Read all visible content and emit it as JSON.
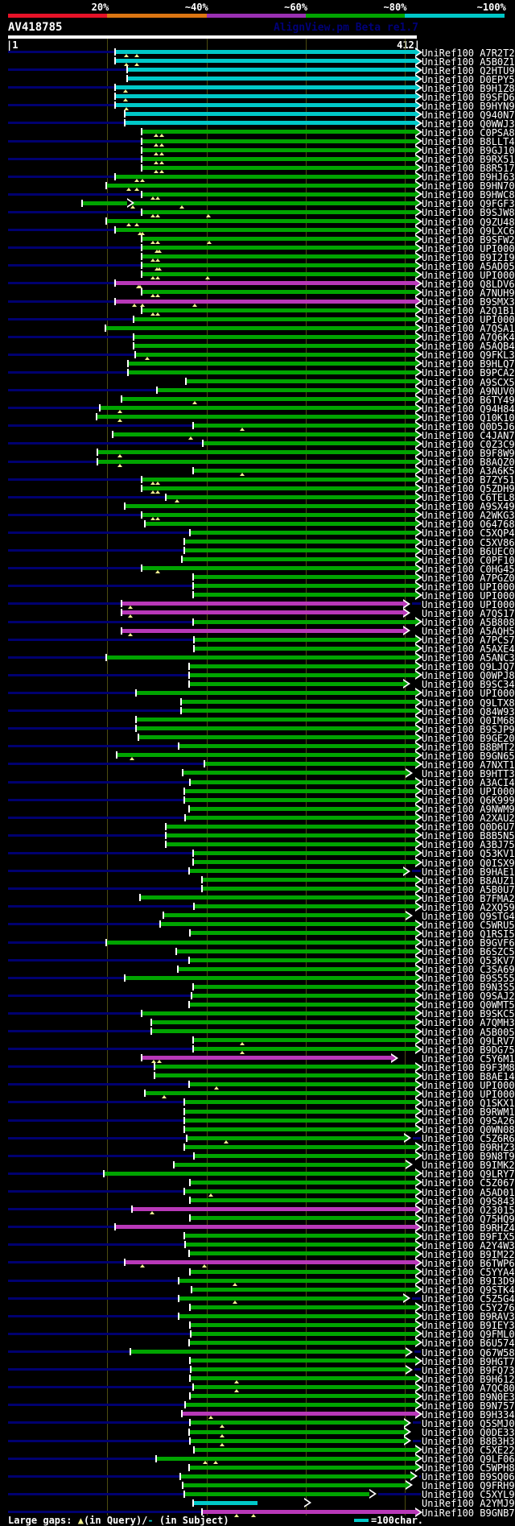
{
  "header": {
    "query_name": "AV418785",
    "app_label": "AlignView.pm Beta re1.7",
    "ruler": {
      "left": "|1",
      "right": "412|",
      "length": 412
    },
    "scale": {
      "labels": [
        {
          "text": "20%",
          "boundary": 100
        },
        {
          "text": "~40%",
          "boundary": 200
        },
        {
          "text": "~60%",
          "boundary": 300
        },
        {
          "text": "~80%",
          "boundary": 400
        },
        {
          "text": "~100%",
          "boundary": 500
        }
      ],
      "segments": [
        {
          "name": "red",
          "color": "#e61228",
          "from": 0,
          "to": 100
        },
        {
          "name": "orange",
          "color": "#dc7612",
          "from": 100,
          "to": 200
        },
        {
          "name": "purple",
          "color": "#9a30b2",
          "from": 200,
          "to": 300
        },
        {
          "name": "green",
          "color": "#00a400",
          "from": 300,
          "to": 400
        },
        {
          "name": "cyan",
          "color": "#00c8c8",
          "from": 400,
          "to": 500
        }
      ]
    }
  },
  "legend": {
    "prefix": "Large gaps: ",
    "query_marker": "▲",
    "query_text": "(in Query)/",
    "subject_marker": "-",
    "subject_text": " (in Subject)",
    "scalebar_label": "=100char.",
    "scalebar_chars": 100
  },
  "colors": {
    "cyan": "#00c8c8",
    "green": "#00a400",
    "magenta": "#b838b8",
    "navy": "#000070",
    "grid": "#4c4c10",
    "triangle": "#f0f090",
    "white": "#ffffff"
  },
  "chart_data": {
    "type": "alignment-overview",
    "query": "AV418785",
    "query_length": 412,
    "note": "Rows: l=subject label, c=bar color class (green default), s/e=aligned start/end in query coords, t=large-gap-in-query triangle positions, oa=open arrowhead position, na=no solid end arrow",
    "rows": [
      {
        "l": "UniRef100_A7R2T2",
        "c": "cyan",
        "s": 110,
        "e": 412,
        "t": [
          120,
          131
        ]
      },
      {
        "l": "UniRef100_A5B0Z1",
        "c": "cyan",
        "s": 110,
        "e": 412,
        "t": [
          120,
          131
        ]
      },
      {
        "l": "UniRef100_Q2HTU9",
        "c": "cyan",
        "s": 122,
        "e": 412
      },
      {
        "l": "UniRef100_D0EPY5",
        "c": "cyan",
        "s": 122,
        "e": 412
      },
      {
        "l": "UniRef100_B9H1Z8",
        "c": "cyan",
        "s": 110,
        "e": 412,
        "t": [
          119
        ]
      },
      {
        "l": "UniRef100_B9SFD6",
        "c": "cyan",
        "s": 110,
        "e": 412,
        "t": [
          119
        ]
      },
      {
        "l": "UniRef100_B9HYN9",
        "c": "cyan",
        "s": 110,
        "e": 412,
        "t": [
          120
        ]
      },
      {
        "l": "UniRef100_Q940N7",
        "c": "cyan",
        "s": 119,
        "e": 412
      },
      {
        "l": "UniRef100_Q0WWJ3",
        "c": "cyan",
        "s": 119,
        "e": 412
      },
      {
        "l": "UniRef100_C0PSA8",
        "s": 136,
        "e": 412,
        "t": [
          150,
          156
        ]
      },
      {
        "l": "UniRef100_B8LLT4",
        "s": 136,
        "e": 412,
        "t": [
          150,
          156
        ]
      },
      {
        "l": "UniRef100_B9GJ10",
        "s": 136,
        "e": 412,
        "t": [
          150,
          156
        ]
      },
      {
        "l": "UniRef100_B9RX51",
        "s": 136,
        "e": 412,
        "t": [
          150,
          156
        ]
      },
      {
        "l": "UniRef100_B8R517",
        "s": 136,
        "e": 412,
        "t": [
          150,
          156
        ]
      },
      {
        "l": "UniRef100_B9HJ63",
        "s": 110,
        "e": 412,
        "t": [
          131,
          136
        ]
      },
      {
        "l": "UniRef100_B9HN70",
        "s": 101,
        "e": 412,
        "t": [
          123,
          131
        ]
      },
      {
        "l": "UniRef100_B9HWC8",
        "s": 136,
        "e": 412,
        "t": [
          147,
          152
        ]
      },
      {
        "l": "UniRef100_Q9FGF3",
        "s": 76,
        "e": 412,
        "t": [
          127,
          176
        ],
        "oa": 122
      },
      {
        "l": "UniRef100_B9SJW8",
        "s": 136,
        "e": 412,
        "t": [
          147,
          152,
          203
        ]
      },
      {
        "l": "UniRef100_Q9ZU48",
        "s": 101,
        "e": 412,
        "t": [
          123,
          131
        ]
      },
      {
        "l": "UniRef100_Q9LXC6",
        "s": 110,
        "e": 412,
        "t": [
          134,
          136
        ]
      },
      {
        "l": "UniRef100_B9SFW2",
        "s": 136,
        "e": 412,
        "t": [
          147,
          152,
          204
        ]
      },
      {
        "l": "UniRef100_UPI000..",
        "s": 136,
        "e": 412,
        "t": [
          151,
          153
        ]
      },
      {
        "l": "UniRef100_B9I2I9",
        "s": 136,
        "e": 412,
        "t": [
          147,
          152
        ]
      },
      {
        "l": "UniRef100_A5AD05",
        "s": 136,
        "e": 412,
        "t": [
          151,
          153
        ]
      },
      {
        "l": "UniRef100_UPI000..",
        "s": 136,
        "e": 412,
        "t": [
          147,
          152,
          202
        ]
      },
      {
        "l": "UniRef100_Q8LDV6",
        "c": "magenta",
        "s": 110,
        "e": 412,
        "t": [
          132,
          134
        ]
      },
      {
        "l": "UniRef100_A7NUH9",
        "s": 136,
        "e": 412,
        "t": [
          147,
          152
        ]
      },
      {
        "l": "UniRef100_B9SMX3",
        "c": "magenta",
        "s": 110,
        "e": 412,
        "t": [
          128,
          136,
          189
        ]
      },
      {
        "l": "UniRef100_A2Q1B1",
        "s": 136,
        "e": 412,
        "t": [
          147,
          152
        ]
      },
      {
        "l": "UniRef100_UPI000..",
        "s": 128,
        "e": 412
      },
      {
        "l": "UniRef100_A7QSA1",
        "s": 100,
        "e": 412
      },
      {
        "l": "UniRef100_A7Q6K4",
        "s": 128,
        "e": 412
      },
      {
        "l": "UniRef100_A5AQB4",
        "s": 128,
        "e": 412
      },
      {
        "l": "UniRef100_Q9FKL3",
        "s": 130,
        "e": 412,
        "t": [
          141
        ]
      },
      {
        "l": "UniRef100_B9HLQ7",
        "s": 123,
        "e": 412
      },
      {
        "l": "UniRef100_B9PCA2",
        "s": 123,
        "e": 412
      },
      {
        "l": "UniRef100_A9SCX5",
        "s": 181,
        "e": 412
      },
      {
        "l": "UniRef100_A9NUV0",
        "s": 152,
        "e": 412
      },
      {
        "l": "UniRef100_B6TY49",
        "s": 116,
        "e": 412,
        "t": [
          189
        ]
      },
      {
        "l": "UniRef100_Q94H84",
        "s": 94,
        "e": 412,
        "t": [
          114
        ]
      },
      {
        "l": "UniRef100_Q10K10",
        "s": 91,
        "e": 412,
        "t": [
          114
        ]
      },
      {
        "l": "UniRef100_Q0D5J6",
        "s": 188,
        "e": 412,
        "t": [
          237
        ]
      },
      {
        "l": "UniRef100_C4JAN7",
        "s": 107,
        "e": 412,
        "t": [
          185
        ]
      },
      {
        "l": "UniRef100_C0Z3C9",
        "s": 198,
        "e": 412
      },
      {
        "l": "UniRef100_B9F8W9",
        "s": 92,
        "e": 412,
        "t": [
          114
        ]
      },
      {
        "l": "UniRef100_B8AQZ0",
        "s": 92,
        "e": 412,
        "t": [
          114
        ]
      },
      {
        "l": "UniRef100_A3A6K5",
        "s": 188,
        "e": 412,
        "t": [
          237
        ]
      },
      {
        "l": "UniRef100_B7ZY51",
        "s": 136,
        "e": 412,
        "t": [
          147,
          152
        ]
      },
      {
        "l": "UniRef100_Q5ZDH9",
        "s": 136,
        "e": 412,
        "t": [
          147,
          152
        ]
      },
      {
        "l": "UniRef100_C6TEL8",
        "s": 161,
        "e": 412,
        "t": [
          171
        ]
      },
      {
        "l": "UniRef100_A9SX49",
        "s": 119,
        "e": 412
      },
      {
        "l": "UniRef100_A2WKG3",
        "s": 136,
        "e": 412,
        "t": [
          147,
          152
        ]
      },
      {
        "l": "UniRef100_O64768",
        "s": 140,
        "e": 412
      },
      {
        "l": "UniRef100_C5XQP4",
        "s": 185,
        "e": 412
      },
      {
        "l": "UniRef100_C5XV86",
        "s": 179,
        "e": 412
      },
      {
        "l": "UniRef100_B6UEC0",
        "s": 179,
        "e": 412
      },
      {
        "l": "UniRef100_C0PF10",
        "s": 177,
        "e": 412
      },
      {
        "l": "UniRef100_C0HG45",
        "s": 136,
        "e": 412,
        "t": [
          152
        ]
      },
      {
        "l": "UniRef100_A7PGZ0",
        "s": 188,
        "e": 412
      },
      {
        "l": "UniRef100_UPI000..",
        "s": 188,
        "e": 412
      },
      {
        "l": "UniRef100_UPI000..",
        "s": 188,
        "e": 412
      },
      {
        "l": "UniRef100_UPI000..",
        "c": "magenta",
        "s": 116,
        "e": 400,
        "t": [
          124
        ]
      },
      {
        "l": "UniRef100_A7QS17",
        "c": "magenta",
        "s": 116,
        "e": 400,
        "t": [
          124
        ]
      },
      {
        "l": "UniRef100_A5B808",
        "s": 188,
        "e": 412
      },
      {
        "l": "UniRef100_A5AQH5",
        "c": "magenta",
        "s": 116,
        "e": 400,
        "t": [
          124
        ]
      },
      {
        "l": "UniRef100_A7PCS7",
        "s": 189,
        "e": 412
      },
      {
        "l": "UniRef100_A5AXE4",
        "s": 189,
        "e": 412
      },
      {
        "l": "UniRef100_A5ANC3",
        "s": 101,
        "e": 412
      },
      {
        "l": "UniRef100_Q9LJQ7",
        "s": 184,
        "e": 412
      },
      {
        "l": "UniRef100_Q0WPJ8",
        "s": 184,
        "e": 412
      },
      {
        "l": "UniRef100_B9SC34",
        "s": 184,
        "e": 400
      },
      {
        "l": "UniRef100_UPI000..",
        "s": 131,
        "e": 412
      },
      {
        "l": "UniRef100_Q9LTX8",
        "s": 176,
        "e": 412
      },
      {
        "l": "UniRef100_Q84W93",
        "s": 176,
        "e": 412
      },
      {
        "l": "UniRef100_Q0IM68",
        "s": 131,
        "e": 412
      },
      {
        "l": "UniRef100_B9SJP9",
        "s": 131,
        "e": 412
      },
      {
        "l": "UniRef100_B9GE20",
        "s": 133,
        "e": 412
      },
      {
        "l": "UniRef100_B8BMT2",
        "s": 174,
        "e": 412
      },
      {
        "l": "UniRef100_B9GN65",
        "s": 111,
        "e": 412,
        "t": [
          126
        ]
      },
      {
        "l": "UniRef100_A7NXT1",
        "s": 200,
        "e": 412
      },
      {
        "l": "UniRef100_B9HTT3",
        "s": 178,
        "e": 402
      },
      {
        "l": "UniRef100_A3ACI4",
        "s": 185,
        "e": 412
      },
      {
        "l": "UniRef100_UPI000..",
        "s": 179,
        "e": 412
      },
      {
        "l": "UniRef100_Q6K999",
        "s": 179,
        "e": 412
      },
      {
        "l": "UniRef100_A9NWM9",
        "s": 184,
        "e": 412
      },
      {
        "l": "UniRef100_A2XAU2",
        "s": 180,
        "e": 412
      },
      {
        "l": "UniRef100_Q0D6U7",
        "s": 161,
        "e": 412
      },
      {
        "l": "UniRef100_B8B5N5",
        "s": 161,
        "e": 412
      },
      {
        "l": "UniRef100_A3BJ75",
        "s": 161,
        "e": 412
      },
      {
        "l": "UniRef100_Q53KV1",
        "s": 188,
        "e": 412
      },
      {
        "l": "UniRef100_Q0ISX9",
        "s": 188,
        "e": 412
      },
      {
        "l": "UniRef100_B9HAE1",
        "s": 184,
        "e": 400
      },
      {
        "l": "UniRef100_B8AUZ1",
        "s": 197,
        "e": 412
      },
      {
        "l": "UniRef100_A5B0U7",
        "s": 197,
        "e": 412
      },
      {
        "l": "UniRef100_B7FMA2",
        "s": 135,
        "e": 412
      },
      {
        "l": "UniRef100_A2XQ59",
        "s": 189,
        "e": 412
      },
      {
        "l": "UniRef100_Q9STG4",
        "s": 158,
        "e": 402
      },
      {
        "l": "UniRef100_C5WRU5",
        "s": 155,
        "e": 412
      },
      {
        "l": "UniRef100_Q1RSI5",
        "s": 185,
        "e": 412
      },
      {
        "l": "UniRef100_B9GVF6",
        "s": 101,
        "e": 412
      },
      {
        "l": "UniRef100_B6SZC5",
        "s": 171,
        "e": 412
      },
      {
        "l": "UniRef100_Q53KV7",
        "s": 184,
        "e": 412
      },
      {
        "l": "UniRef100_C3SA69",
        "s": 173,
        "e": 412
      },
      {
        "l": "UniRef100_B9S555",
        "s": 119,
        "e": 412
      },
      {
        "l": "UniRef100_B9N3S5",
        "s": 188,
        "e": 412
      },
      {
        "l": "UniRef100_Q9SAJ2",
        "s": 187,
        "e": 412
      },
      {
        "l": "UniRef100_Q0WMT5",
        "s": 184,
        "e": 412
      },
      {
        "l": "UniRef100_B9SKC5",
        "s": 136,
        "e": 412
      },
      {
        "l": "UniRef100_A7QMH3",
        "s": 146,
        "e": 412
      },
      {
        "l": "UniRef100_A5B005",
        "s": 146,
        "e": 412
      },
      {
        "l": "UniRef100_Q9LRV7",
        "s": 188,
        "e": 412,
        "t": [
          237
        ]
      },
      {
        "l": "UniRef100_B9DG75",
        "s": 188,
        "e": 412,
        "t": [
          237
        ]
      },
      {
        "l": "UniRef100_C5Y6M1",
        "c": "magenta",
        "s": 136,
        "e": 388,
        "t": [
          148,
          153
        ]
      },
      {
        "l": "UniRef100_B9F3M8",
        "s": 149,
        "e": 412
      },
      {
        "l": "UniRef100_B8AE14",
        "s": 149,
        "e": 412
      },
      {
        "l": "UniRef100_UPI000..",
        "s": 184,
        "e": 412,
        "t": [
          211
        ]
      },
      {
        "l": "UniRef100_UPI000..",
        "s": 140,
        "e": 412,
        "t": [
          158
        ]
      },
      {
        "l": "UniRef100_Q1SKX1",
        "s": 179,
        "e": 412
      },
      {
        "l": "UniRef100_B9RWM1",
        "s": 179,
        "e": 412
      },
      {
        "l": "UniRef100_Q9SA26",
        "s": 179,
        "e": 412
      },
      {
        "l": "UniRef100_Q0WN08",
        "s": 179,
        "e": 412
      },
      {
        "l": "UniRef100_C5Z6R6",
        "s": 182,
        "e": 401,
        "t": [
          221
        ]
      },
      {
        "l": "UniRef100_B9RHZ3",
        "s": 179,
        "e": 412
      },
      {
        "l": "UniRef100_B9N8T9",
        "s": 189,
        "e": 412
      },
      {
        "l": "UniRef100_B9IMK2",
        "s": 169,
        "e": 402
      },
      {
        "l": "UniRef100_Q9LRY7",
        "s": 98,
        "e": 412
      },
      {
        "l": "UniRef100_C5Z067",
        "s": 185,
        "e": 412
      },
      {
        "l": "UniRef100_A5AD01",
        "s": 179,
        "e": 412,
        "t": [
          205
        ]
      },
      {
        "l": "UniRef100_Q9S843",
        "s": 185,
        "e": 412
      },
      {
        "l": "UniRef100_O23015",
        "c": "magenta",
        "s": 127,
        "e": 412,
        "t": [
          146
        ]
      },
      {
        "l": "UniRef100_Q75HQ9",
        "s": 185,
        "e": 412
      },
      {
        "l": "UniRef100_B9RHZ4",
        "c": "magenta",
        "s": 110,
        "e": 412
      },
      {
        "l": "UniRef100_B9FIX5",
        "s": 179,
        "e": 412
      },
      {
        "l": "UniRef100_A2Y4W3",
        "s": 180,
        "e": 412
      },
      {
        "l": "UniRef100_B9IM22",
        "s": 184,
        "e": 412
      },
      {
        "l": "UniRef100_B6TWP6",
        "c": "magenta",
        "s": 119,
        "e": 412,
        "t": [
          136,
          199
        ]
      },
      {
        "l": "UniRef100_C5YYA4",
        "s": 185,
        "e": 412
      },
      {
        "l": "UniRef100_B9I3D9",
        "s": 174,
        "e": 412,
        "t": [
          230
        ]
      },
      {
        "l": "UniRef100_Q9STK4",
        "s": 187,
        "e": 412
      },
      {
        "l": "UniRef100_C5Z5G4",
        "s": 174,
        "e": 400,
        "t": [
          230
        ]
      },
      {
        "l": "UniRef100_C5Y276",
        "s": 185,
        "e": 412
      },
      {
        "l": "UniRef100_B9RAV3",
        "s": 174,
        "e": 412
      },
      {
        "l": "UniRef100_B9IEY3",
        "s": 185,
        "e": 412
      },
      {
        "l": "UniRef100_Q9FML0",
        "s": 186,
        "e": 412
      },
      {
        "l": "UniRef100_B6U574",
        "s": 184,
        "e": 412
      },
      {
        "l": "UniRef100_Q67W58",
        "s": 125,
        "e": 402
      },
      {
        "l": "UniRef100_B9HGT7",
        "s": 185,
        "e": 412
      },
      {
        "l": "UniRef100_B9FQ73",
        "s": 186,
        "e": 402
      },
      {
        "l": "UniRef100_B9H612",
        "s": 185,
        "e": 412,
        "t": [
          231
        ]
      },
      {
        "l": "UniRef100_A7QC80",
        "s": 188,
        "e": 412,
        "t": [
          231
        ]
      },
      {
        "l": "UniRef100_B9N0E3",
        "s": 185,
        "e": 412
      },
      {
        "l": "UniRef100_B9N757",
        "s": 180,
        "e": 412
      },
      {
        "l": "UniRef100_B9H334",
        "c": "magenta",
        "s": 177,
        "e": 412,
        "t": [
          205
        ]
      },
      {
        "l": "UniRef100_Q5SMJ0",
        "s": 185,
        "e": 401,
        "t": [
          217
        ]
      },
      {
        "l": "UniRef100_Q0DE33",
        "s": 184,
        "e": 401,
        "t": [
          217
        ]
      },
      {
        "l": "UniRef100_B8B3H3",
        "s": 185,
        "e": 401,
        "t": [
          217
        ]
      },
      {
        "l": "UniRef100_C5XE22",
        "s": 189,
        "e": 412
      },
      {
        "l": "UniRef100_Q9LF06",
        "s": 151,
        "e": 412,
        "t": [
          200,
          210
        ]
      },
      {
        "l": "UniRef100_C5WPH8",
        "s": 184,
        "e": 412
      },
      {
        "l": "UniRef100_B9SQ06",
        "s": 175,
        "e": 407
      },
      {
        "l": "UniRef100_Q9FRH9",
        "s": 178,
        "e": 402
      },
      {
        "l": "UniRef100_C5XYL9",
        "s": 179,
        "e": 366,
        "na": true,
        "oa": 366
      },
      {
        "l": "UniRef100_A2YMJ9",
        "c": "cyan",
        "s": 188,
        "e": 252,
        "na": true,
        "oa": 300
      },
      {
        "l": "UniRef100_B9GNB7",
        "c": "magenta",
        "s": 197,
        "e": 412,
        "t": [
          231,
          248
        ]
      }
    ]
  }
}
